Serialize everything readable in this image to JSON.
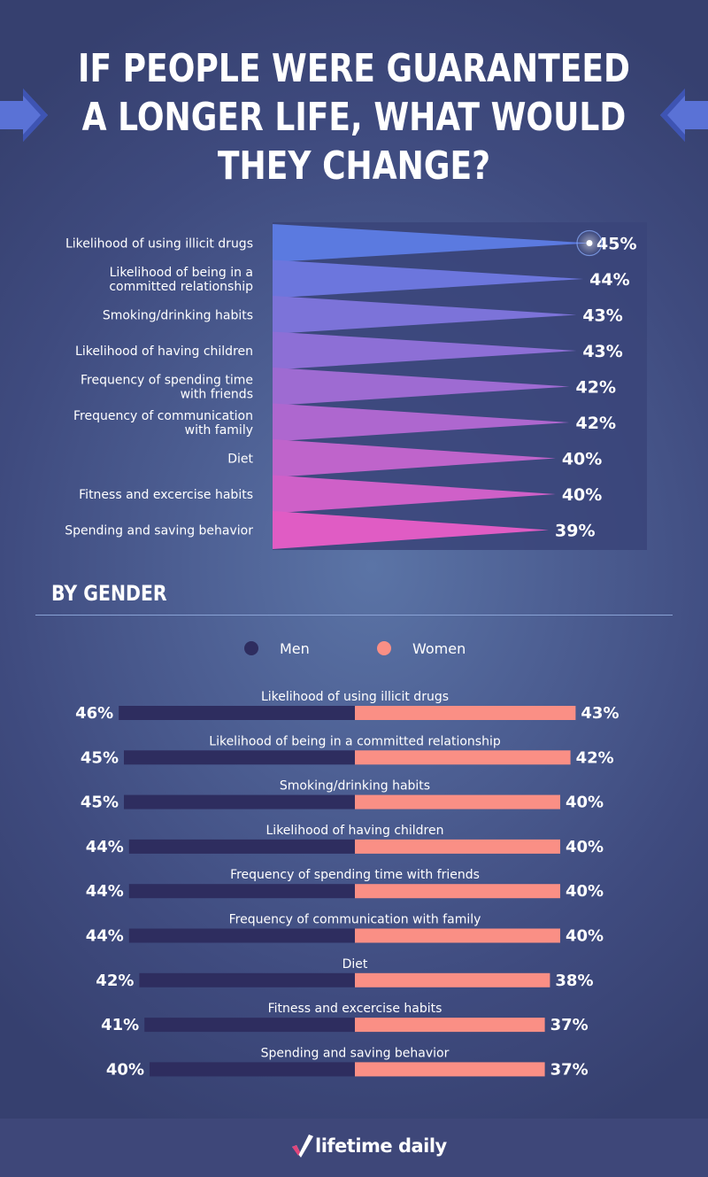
{
  "header": {
    "title": "If people were guaranteed a longer life, what would they change?"
  },
  "colors": {
    "funnel_gradient_start": "#5b7ae0",
    "funnel_gradient_end": "#e05cc4",
    "men": "#2e2d5f",
    "women": "#fa8f85",
    "panel": "#3a4479"
  },
  "chart_data": [
    {
      "type": "bar",
      "title": "If people were guaranteed a longer life, what would they change?",
      "categories": [
        [
          "Likelihood of using illicit drugs"
        ],
        [
          "Likelihood of being in a",
          "committed relationship"
        ],
        [
          "Smoking/drinking habits"
        ],
        [
          "Likelihood of having children"
        ],
        [
          "Frequency of spending time",
          "with friends"
        ],
        [
          "Frequency of communication",
          "with family"
        ],
        [
          "Diet"
        ],
        [
          "Fitness and excercise habits"
        ],
        [
          "Spending and saving behavior"
        ]
      ],
      "values": [
        45,
        44,
        43,
        43,
        42,
        42,
        40,
        40,
        39
      ],
      "value_labels": [
        "45%",
        "44%",
        "43%",
        "43%",
        "42%",
        "42%",
        "40%",
        "40%",
        "39%"
      ],
      "orientation": "horizontal"
    },
    {
      "type": "bar",
      "title": "By gender",
      "categories": [
        "Likelihood of using illicit drugs",
        "Likelihood of being in a committed relationship",
        "Smoking/drinking habits",
        "Likelihood of having children",
        "Frequency of spending time with friends",
        "Frequency of communication with family",
        "Diet",
        "Fitness and excercise habits",
        "Spending and saving behavior"
      ],
      "series": [
        {
          "name": "Men",
          "values": [
            46,
            45,
            45,
            44,
            44,
            44,
            42,
            41,
            40
          ],
          "labels": [
            "46%",
            "45%",
            "45%",
            "44%",
            "44%",
            "44%",
            "42%",
            "41%",
            "40%"
          ]
        },
        {
          "name": "Women",
          "values": [
            43,
            42,
            40,
            40,
            40,
            40,
            38,
            37,
            37
          ],
          "labels": [
            "43%",
            "42%",
            "40%",
            "40%",
            "40%",
            "40%",
            "38%",
            "37%",
            "37%"
          ]
        }
      ],
      "orientation": "diverging"
    }
  ],
  "gender_section": {
    "title": "By gender",
    "legend": [
      {
        "label": "Men",
        "color": "#2e2d5f"
      },
      {
        "label": "Women",
        "color": "#fa8f85"
      }
    ]
  },
  "footer": {
    "logo_icon": "checkmark-icon",
    "brand": "lifetime daily"
  }
}
